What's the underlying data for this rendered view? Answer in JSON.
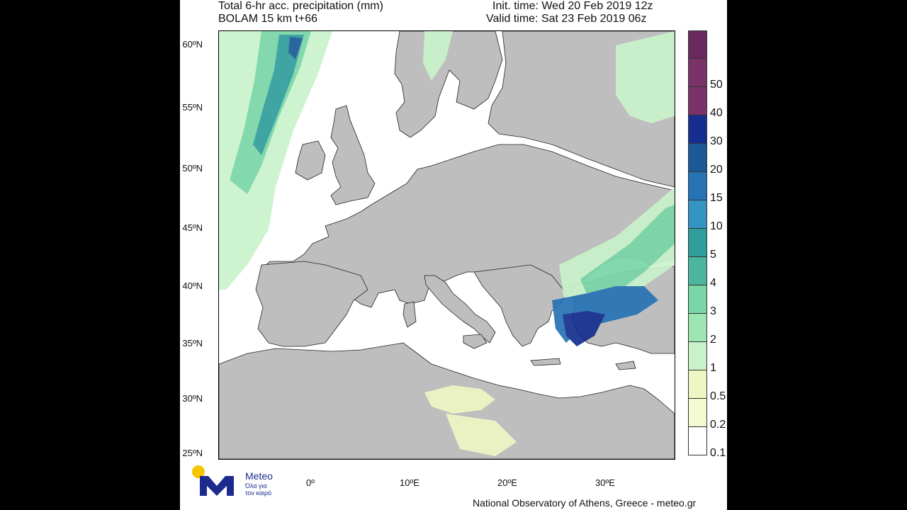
{
  "header": {
    "title_left_line1": "Total 6-hr acc. precipitation (mm)",
    "title_left_line2": "BOLAM 15 km t+66",
    "title_right_line1": "Init. time: Wed 20 Feb 2019 12z",
    "title_right_line2": "Valid time: Sat 23 Feb 2019 06z"
  },
  "map": {
    "lat_labels": [
      "60ºN",
      "55ºN",
      "50ºN",
      "45ºN",
      "40ºN",
      "35ºN",
      "30ºN",
      "25ºN"
    ],
    "lon_labels": [
      "0º",
      "10ºE",
      "20ºE",
      "30ºE"
    ],
    "land_color": "#bebebe",
    "sea_color": "#ffffff"
  },
  "colorbar": {
    "levels": [
      {
        "label": "",
        "color": "#6b2a5e"
      },
      {
        "label": "50",
        "color": "#7a3368"
      },
      {
        "label": "40",
        "color": "#7a3368"
      },
      {
        "label": "30",
        "color": "#152e8f"
      },
      {
        "label": "20",
        "color": "#1b5a96"
      },
      {
        "label": "15",
        "color": "#2673b5"
      },
      {
        "label": "10",
        "color": "#3395c2"
      },
      {
        "label": "5",
        "color": "#2f9d9b"
      },
      {
        "label": "4",
        "color": "#4bb59d"
      },
      {
        "label": "3",
        "color": "#79d6a7"
      },
      {
        "label": "2",
        "color": "#9de6b4"
      },
      {
        "label": "1",
        "color": "#c9f2cb"
      },
      {
        "label": "0.5",
        "color": "#eef6c4"
      },
      {
        "label": "0.2",
        "color": "#f4f9d0"
      },
      {
        "label": "0.1",
        "color": "#ffffff"
      }
    ]
  },
  "logo": {
    "name": "Meteo",
    "tagline_line1": "Όλα για",
    "tagline_line2": "τον καιρό",
    "icon": "meteo-logo-icon"
  },
  "footer": {
    "credit": "National Observatory of Athens, Greece - meteo.gr"
  }
}
